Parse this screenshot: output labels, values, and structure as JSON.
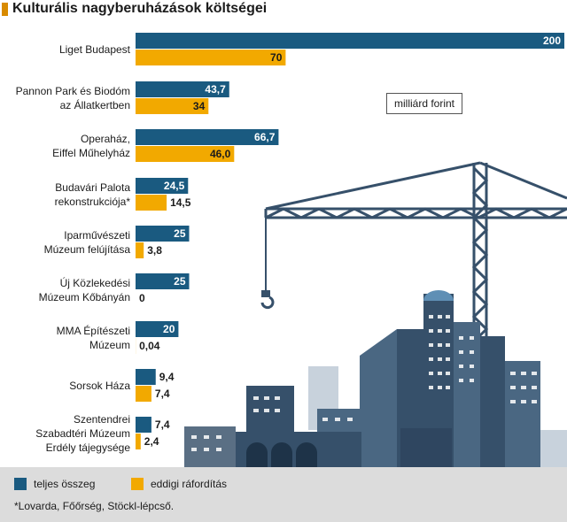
{
  "title": "Kulturális nagyberuházások költségei",
  "unit_label": "milliárd forint",
  "legend": {
    "total": "teljes összeg",
    "spent": "eddigi ráfordítás"
  },
  "footnote": "*Lovarda, Főőrség, Stöckl-lépcső.",
  "colors": {
    "total": "#1a5a80",
    "spent": "#f2a900",
    "footer_bg": "#dcdcdc",
    "illustration": "#36506a"
  },
  "chart_data": {
    "type": "bar",
    "orientation": "horizontal",
    "categories": [
      [
        "Liget Budapest"
      ],
      [
        "Pannon  Park és Biodóm",
        "az Állatkertben"
      ],
      [
        "Operaház,",
        "Eiffel Műhelyház"
      ],
      [
        "Budavári Palota",
        "rekonstrukciója*"
      ],
      [
        "Iparművészeti",
        "Múzeum felújítása"
      ],
      [
        "Új Közlekedési",
        "Múzeum Kőbányán"
      ],
      [
        "MMA Építészeti",
        "Múzeum"
      ],
      [
        "Sorsok Háza"
      ],
      [
        "Szentendrei",
        "Szabadtéri Múzeum",
        "Erdély tájegysége"
      ]
    ],
    "series": [
      {
        "name": "teljes összeg",
        "values": [
          200,
          43.7,
          66.7,
          24.5,
          25,
          25,
          20,
          9.4,
          7.4
        ],
        "labels": [
          "200",
          "43,7",
          "66,7",
          "24,5",
          "25",
          "25",
          "20",
          "9,4",
          "7,4"
        ]
      },
      {
        "name": "eddigi ráfordítás",
        "values": [
          70,
          34,
          46.0,
          14.5,
          3.8,
          0,
          0.04,
          7.4,
          2.4
        ],
        "labels": [
          "70",
          "34",
          "46,0",
          "14,5",
          "3,8",
          "0",
          "0,04",
          "7,4",
          "2,4"
        ]
      }
    ],
    "xlim": [
      0,
      200
    ],
    "grid": false,
    "legend_position": "bottom"
  }
}
